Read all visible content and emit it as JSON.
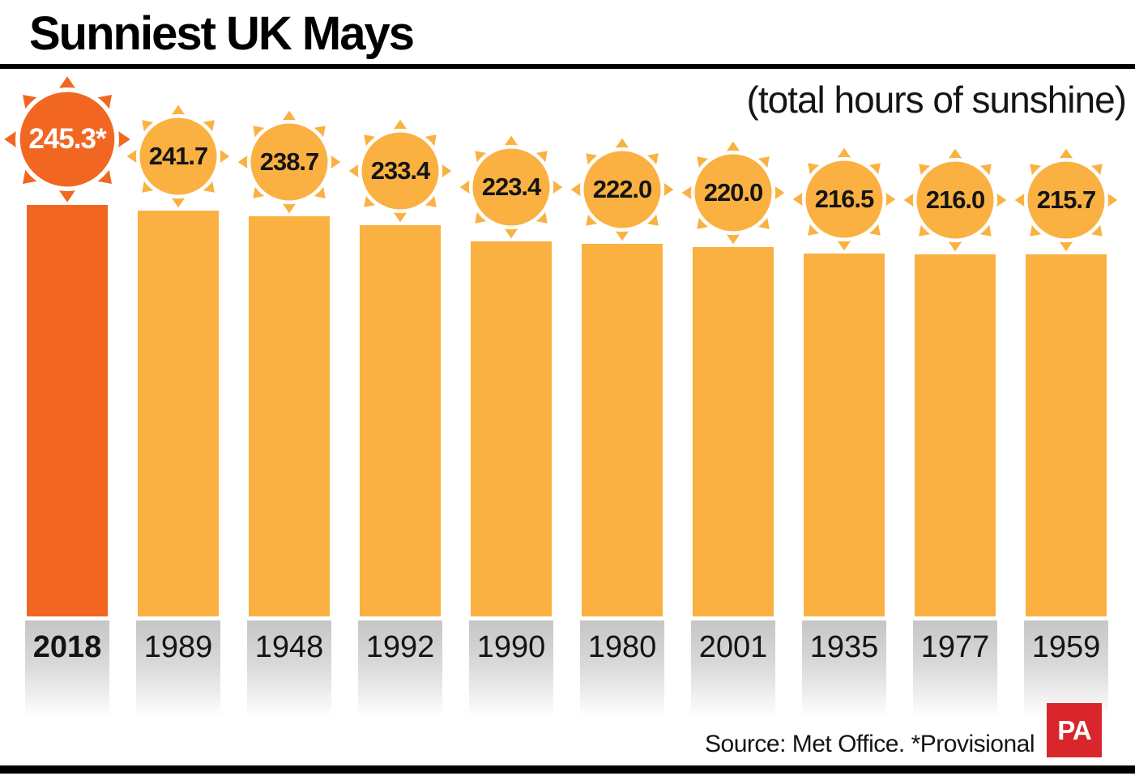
{
  "title": "Sunniest UK Mays",
  "subtitle": "(total hours of sunshine)",
  "source": "Source: Met Office. *Provisional",
  "logo": {
    "text": "PA",
    "color": "#d8262c"
  },
  "colors": {
    "highlight": "#f16721",
    "regular": "#fab142"
  },
  "chart_data": {
    "type": "bar",
    "title": "Sunniest UK Mays",
    "subtitle": "(total hours of sunshine)",
    "categories": [
      "2018",
      "1989",
      "1948",
      "1992",
      "1990",
      "1980",
      "2001",
      "1935",
      "1977",
      "1959"
    ],
    "values": [
      245.3,
      241.7,
      238.7,
      233.4,
      223.4,
      222.0,
      220.0,
      216.5,
      216.0,
      215.7
    ],
    "value_labels": [
      "245.3*",
      "241.7",
      "238.7",
      "233.4",
      "223.4",
      "222.0",
      "220.0",
      "216.5",
      "216.0",
      "215.7"
    ],
    "highlighted_index": 0,
    "ylabel": "total hours of sunshine",
    "ylim": [
      0,
      245.3
    ],
    "grid": false,
    "legend": "none",
    "source": "Source: Met Office. *Provisional"
  }
}
